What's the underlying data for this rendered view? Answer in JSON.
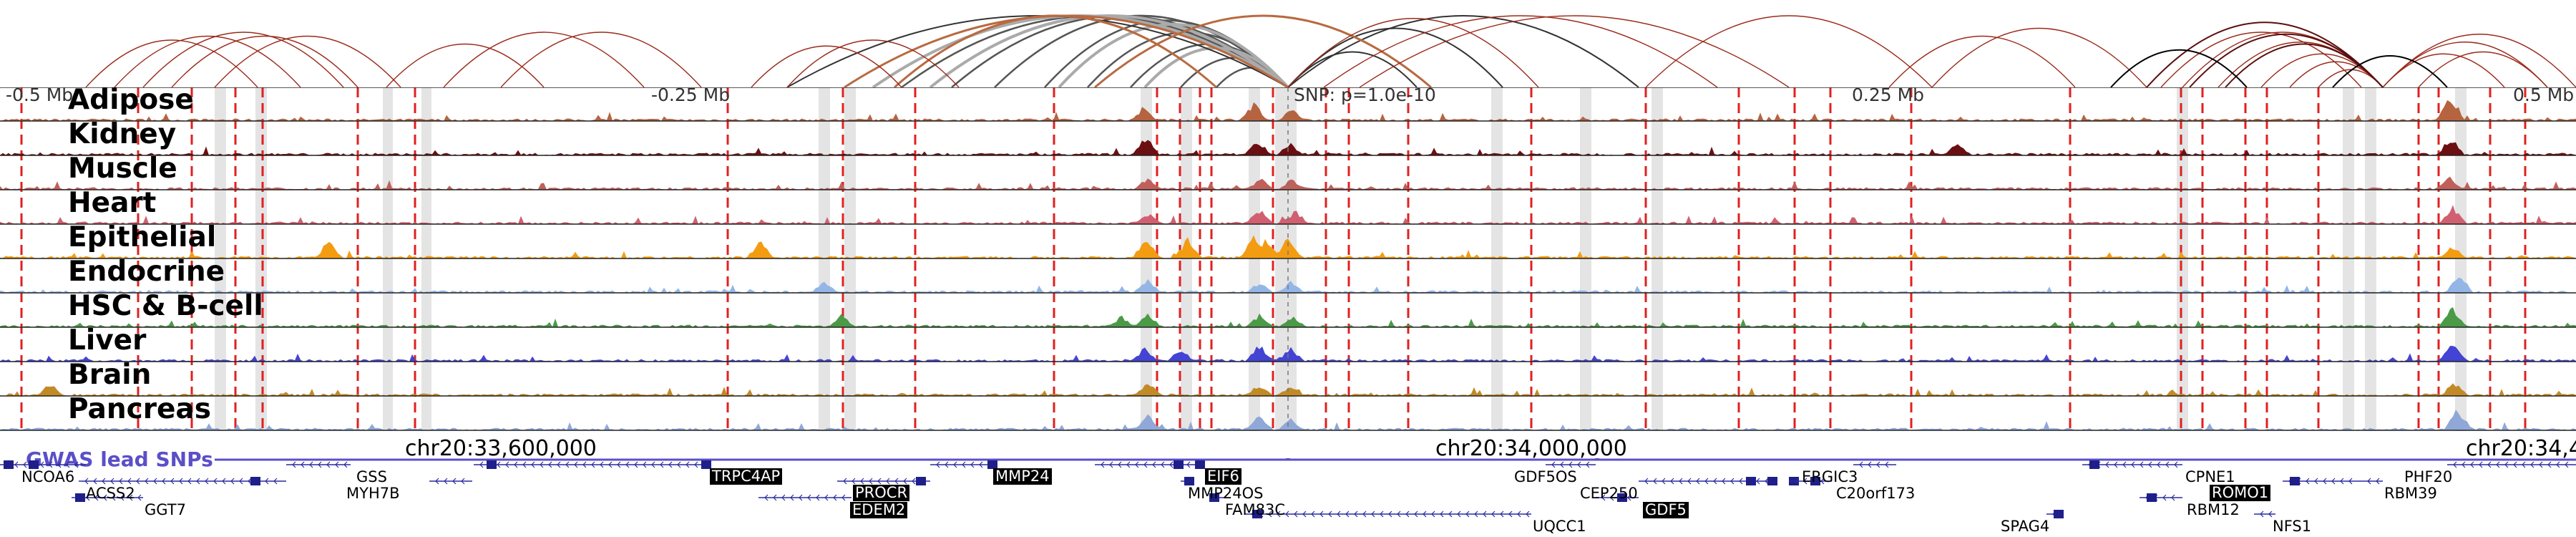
{
  "tracks": [
    {
      "name": "Adipose",
      "color": "#b5643f"
    },
    {
      "name": "Kidney",
      "color": "#6b0f12"
    },
    {
      "name": "Muscle",
      "color": "#c0605a"
    },
    {
      "name": "Heart",
      "color": "#d06070"
    },
    {
      "name": "Epithelial",
      "color": "#f39c12"
    },
    {
      "name": "Endocrine",
      "color": "#93b6e6"
    },
    {
      "name": "HSC & B-cell",
      "color": "#4a9a47"
    },
    {
      "name": "Liver",
      "color": "#4343d4"
    },
    {
      "name": "Brain",
      "color": "#c28a27"
    },
    {
      "name": "Pancreas",
      "color": "#8fa8d8"
    }
  ],
  "ruler": {
    "ticks": [
      "-0.5 Mb",
      "-0.25 Mb",
      "0.25 Mb",
      "0.5 Mb"
    ],
    "snp_label": "SNP: p=1.0e-10"
  },
  "gwas": {
    "label": "GWAS lead SNPs"
  },
  "coordinates": [
    "chr20:33,600,000",
    "chr20:34,000,000",
    "chr20:34,4"
  ],
  "genes": [
    {
      "name": "NCOA6",
      "highlight": false
    },
    {
      "name": "GSS",
      "highlight": false
    },
    {
      "name": "TRPC4AP",
      "highlight": true
    },
    {
      "name": "MMP24",
      "highlight": true
    },
    {
      "name": "EIF6",
      "highlight": true
    },
    {
      "name": "GDF5OS",
      "highlight": false
    },
    {
      "name": "ERGIC3",
      "highlight": false
    },
    {
      "name": "CPNE1",
      "highlight": false
    },
    {
      "name": "PHF20",
      "highlight": false
    },
    {
      "name": "ACSS2",
      "highlight": false
    },
    {
      "name": "MYH7B",
      "highlight": false
    },
    {
      "name": "PROCR",
      "highlight": true
    },
    {
      "name": "MMP24OS",
      "highlight": false
    },
    {
      "name": "CEP250",
      "highlight": false
    },
    {
      "name": "C20orf173",
      "highlight": false
    },
    {
      "name": "ROMO1",
      "highlight": true
    },
    {
      "name": "RBM39",
      "highlight": false
    },
    {
      "name": "GGT7",
      "highlight": false
    },
    {
      "name": "EDEM2",
      "highlight": true
    },
    {
      "name": "FAM83C",
      "highlight": false
    },
    {
      "name": "GDF5",
      "highlight": true
    },
    {
      "name": "RBM12",
      "highlight": false
    },
    {
      "name": "UQCC1",
      "highlight": false
    },
    {
      "name": "SPAG4",
      "highlight": false
    },
    {
      "name": "NFS1",
      "highlight": false
    }
  ]
}
